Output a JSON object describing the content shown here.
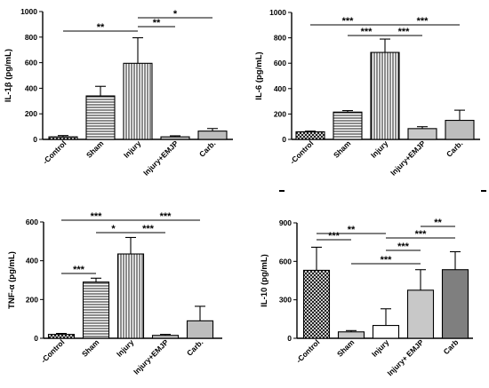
{
  "chart_data": [
    {
      "type": "bar",
      "ylabel": "IL-1β (pg/mL)",
      "ylim": [
        0,
        1000
      ],
      "yticks": [
        "0",
        "200",
        "400",
        "600",
        "800",
        "1000"
      ],
      "categories": [
        "-Control",
        "Sham",
        "Injury",
        "Injury+EMJP",
        "Carb."
      ],
      "values": [
        20,
        340,
        595,
        20,
        65
      ],
      "errors": [
        10,
        75,
        200,
        8,
        20
      ],
      "patterns": [
        "cross",
        "hlines",
        "vlines",
        "solid-light",
        "solid-mid"
      ],
      "significance": [
        {
          "from": 0,
          "to": 2,
          "label": "**"
        },
        {
          "from": 2,
          "to": 3,
          "label": "**"
        },
        {
          "from": 2,
          "to": 4,
          "label": "*"
        }
      ]
    },
    {
      "type": "bar",
      "ylabel": "IL-6 (pg/mL)",
      "ylim": [
        0,
        1000
      ],
      "yticks": [
        "0",
        "200",
        "400",
        "600",
        "800",
        "1000"
      ],
      "categories": [
        "-Control",
        "Sham",
        "Injury",
        "Injury+EMJP",
        "Carb."
      ],
      "values": [
        60,
        215,
        685,
        85,
        150
      ],
      "errors": [
        5,
        12,
        105,
        15,
        80
      ],
      "patterns": [
        "cross",
        "hlines",
        "vlines",
        "solid-light",
        "solid-mid"
      ],
      "significance": [
        {
          "from": 0,
          "to": 2,
          "label": "***"
        },
        {
          "from": 1,
          "to": 2,
          "label": "***"
        },
        {
          "from": 2,
          "to": 3,
          "label": "***"
        },
        {
          "from": 2,
          "to": 4,
          "label": "***"
        }
      ]
    },
    {
      "type": "bar",
      "ylabel": "TNF-α (pg/mL)",
      "ylim": [
        0,
        600
      ],
      "yticks": [
        "0",
        "200",
        "400",
        "600"
      ],
      "categories": [
        "-Control",
        "Sham",
        "Injury",
        "Injury+EMJP",
        "Carb."
      ],
      "values": [
        20,
        290,
        435,
        15,
        90
      ],
      "errors": [
        5,
        20,
        85,
        5,
        75
      ],
      "patterns": [
        "cross",
        "hlines",
        "vlines",
        "solid-light",
        "solid-mid"
      ],
      "significance": [
        {
          "from": 0,
          "to": 2,
          "label": "***"
        },
        {
          "from": 0,
          "to": 1,
          "label": "***"
        },
        {
          "from": 1,
          "to": 2,
          "label": "*"
        },
        {
          "from": 2,
          "to": 3,
          "label": "***"
        },
        {
          "from": 2,
          "to": 4,
          "label": "***"
        }
      ]
    },
    {
      "type": "bar",
      "ylabel": "IL-10 (pg/mL)",
      "ylim": [
        0,
        900
      ],
      "yticks": [
        "0",
        "300",
        "600",
        "900"
      ],
      "categories": [
        "-Control",
        "Sham",
        "Injury",
        "Injury+ EMJP",
        "Carb"
      ],
      "values": [
        530,
        50,
        100,
        375,
        535
      ],
      "errors": [
        180,
        10,
        130,
        160,
        140
      ],
      "patterns": [
        "cross",
        "solid-light",
        "solid-white",
        "solid-light",
        "solid-dark"
      ],
      "significance": [
        {
          "from": 0,
          "to": 1,
          "label": "***"
        },
        {
          "from": 0,
          "to": 2,
          "label": "**"
        },
        {
          "from": 1,
          "to": 3,
          "label": "***"
        },
        {
          "from": 2,
          "to": 3,
          "label": "***"
        },
        {
          "from": 2,
          "to": 4,
          "label": "***"
        },
        {
          "from": 3,
          "to": 4,
          "label": "**"
        }
      ]
    }
  ]
}
